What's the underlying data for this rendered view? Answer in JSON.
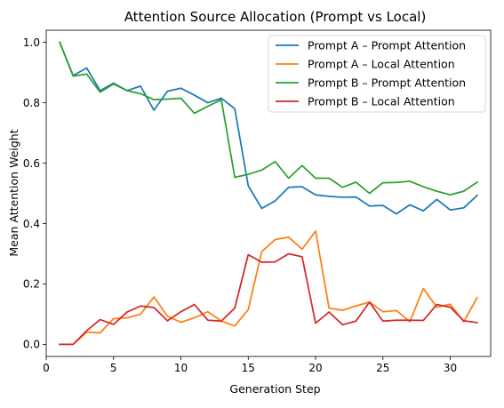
{
  "chart_data": {
    "type": "line",
    "title": "Attention Source Allocation (Prompt vs Local)",
    "xlabel": "Generation Step",
    "ylabel": "Mean Attention Weight",
    "xlim": [
      0.0,
      33.0
    ],
    "ylim": [
      -0.04,
      1.04
    ],
    "xticks": [
      0,
      5,
      10,
      15,
      20,
      25,
      30
    ],
    "yticks": [
      0.0,
      0.2,
      0.4,
      0.6,
      0.8,
      1.0
    ],
    "xtick_labels": [
      "0",
      "5",
      "10",
      "15",
      "20",
      "25",
      "30"
    ],
    "ytick_labels": [
      "0.0",
      "0.2",
      "0.4",
      "0.6",
      "0.8",
      "1.0"
    ],
    "grid": false,
    "legend_position": "top-right",
    "x": [
      1,
      2,
      3,
      4,
      5,
      6,
      7,
      8,
      9,
      10,
      11,
      12,
      13,
      14,
      15,
      16,
      17,
      18,
      19,
      20,
      21,
      22,
      23,
      24,
      25,
      26,
      27,
      28,
      29,
      30,
      31,
      32
    ],
    "series": [
      {
        "name": "Prompt A – Prompt Attention",
        "color": "#1f77b4",
        "values": [
          1.0,
          0.89,
          0.915,
          0.84,
          0.865,
          0.84,
          0.855,
          0.775,
          0.838,
          0.848,
          0.825,
          0.8,
          0.815,
          0.78,
          0.525,
          0.45,
          0.475,
          0.52,
          0.522,
          0.495,
          0.49,
          0.487,
          0.488,
          0.458,
          0.46,
          0.432,
          0.462,
          0.442,
          0.48,
          0.445,
          0.452,
          0.493
        ]
      },
      {
        "name": "Prompt A – Local Attention",
        "color": "#ff7f0e",
        "values": [
          0.0,
          0.0,
          0.04,
          0.038,
          0.085,
          0.088,
          0.1,
          0.157,
          0.093,
          0.073,
          0.088,
          0.108,
          0.077,
          0.061,
          0.115,
          0.307,
          0.347,
          0.355,
          0.315,
          0.375,
          0.12,
          0.113,
          0.127,
          0.14,
          0.108,
          0.112,
          0.075,
          0.185,
          0.123,
          0.133,
          0.075,
          0.155
        ]
      },
      {
        "name": "Prompt B – Prompt Attention",
        "color": "#2ca02c",
        "values": [
          1.0,
          0.888,
          0.895,
          0.835,
          0.862,
          0.84,
          0.83,
          0.81,
          0.812,
          0.815,
          0.765,
          0.788,
          0.81,
          0.553,
          0.563,
          0.577,
          0.605,
          0.55,
          0.592,
          0.55,
          0.55,
          0.52,
          0.537,
          0.5,
          0.535,
          0.536,
          0.54,
          0.522,
          0.507,
          0.495,
          0.507,
          0.537
        ]
      },
      {
        "name": "Prompt B – Local Attention",
        "color": "#d62728",
        "values": [
          0.0,
          0.0,
          0.045,
          0.082,
          0.066,
          0.107,
          0.127,
          0.122,
          0.078,
          0.108,
          0.132,
          0.08,
          0.077,
          0.12,
          0.297,
          0.272,
          0.273,
          0.3,
          0.29,
          0.07,
          0.107,
          0.065,
          0.077,
          0.14,
          0.077,
          0.08,
          0.08,
          0.079,
          0.132,
          0.123,
          0.078,
          0.072
        ]
      }
    ]
  }
}
